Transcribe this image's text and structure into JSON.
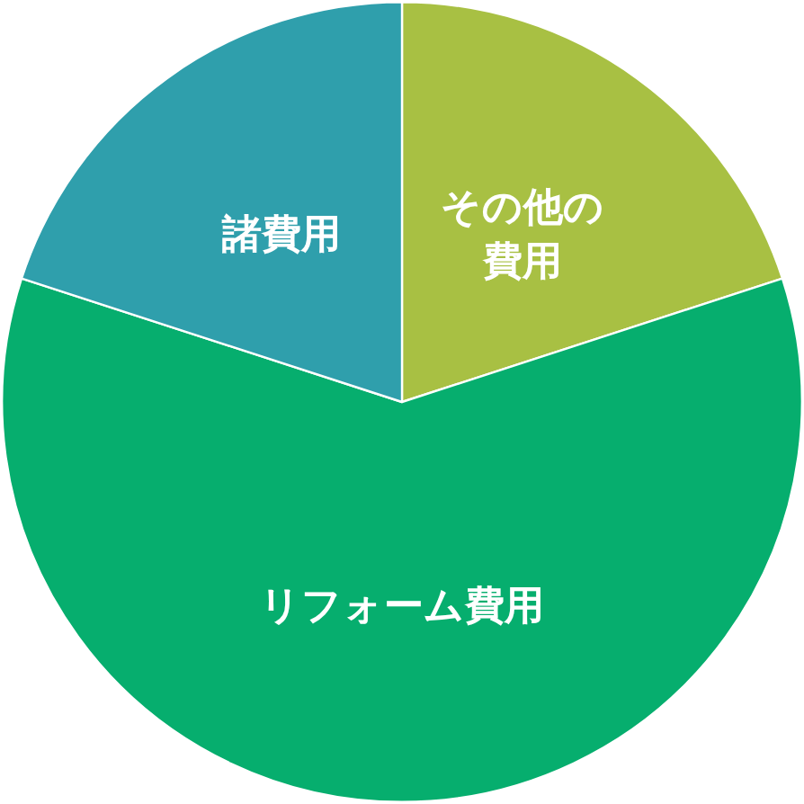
{
  "chart_data": {
    "type": "pie",
    "categories": [
      "その他の費用",
      "リフォーム費用",
      "諸費用"
    ],
    "values": [
      20,
      60,
      20
    ],
    "colors": [
      "#a8c043",
      "#06ae6e",
      "#2f9fac"
    ],
    "legend": false
  }
}
